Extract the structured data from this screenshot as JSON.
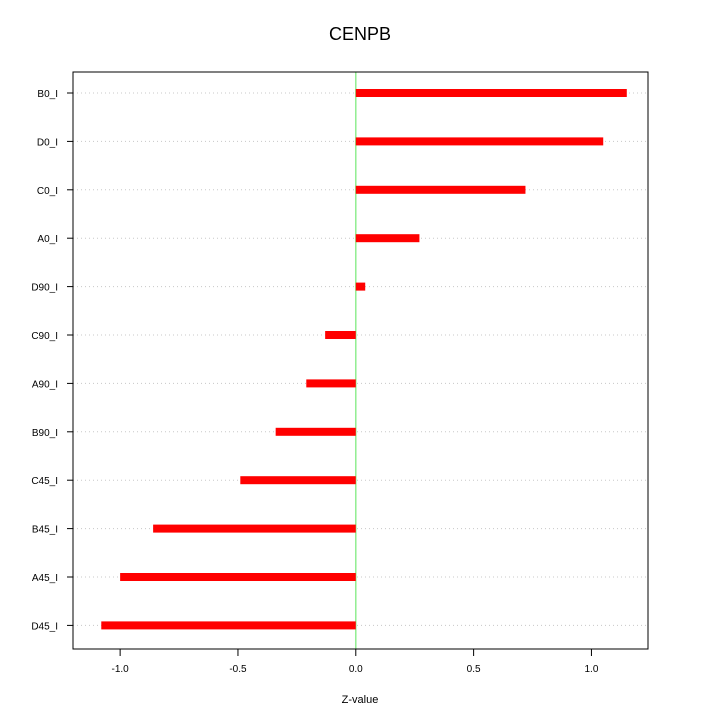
{
  "chart_data": {
    "type": "bar",
    "orientation": "horizontal",
    "title": "CENPB",
    "xlabel": "Z-value",
    "ylabel": "",
    "xlim": [
      -1.2,
      1.24
    ],
    "xticks": [
      -1.0,
      -0.5,
      0.0,
      0.5,
      1.0
    ],
    "xtick_labels": [
      "-1.0",
      "-0.5",
      "0.0",
      "0.5",
      "1.0"
    ],
    "categories": [
      "B0_I",
      "D0_I",
      "C0_I",
      "A0_I",
      "D90_I",
      "C90_I",
      "A90_I",
      "B90_I",
      "C45_I",
      "B45_I",
      "A45_I",
      "D45_I"
    ],
    "values": [
      1.15,
      1.05,
      0.72,
      0.27,
      0.04,
      -0.13,
      -0.21,
      -0.34,
      -0.49,
      -0.86,
      -1.0,
      -1.08
    ],
    "bar_color": "#ff0000",
    "zero_line_color": "#90ee90",
    "grid_color": "#c8c8c8",
    "grid": "horizontal-dotted",
    "legend": "none"
  }
}
